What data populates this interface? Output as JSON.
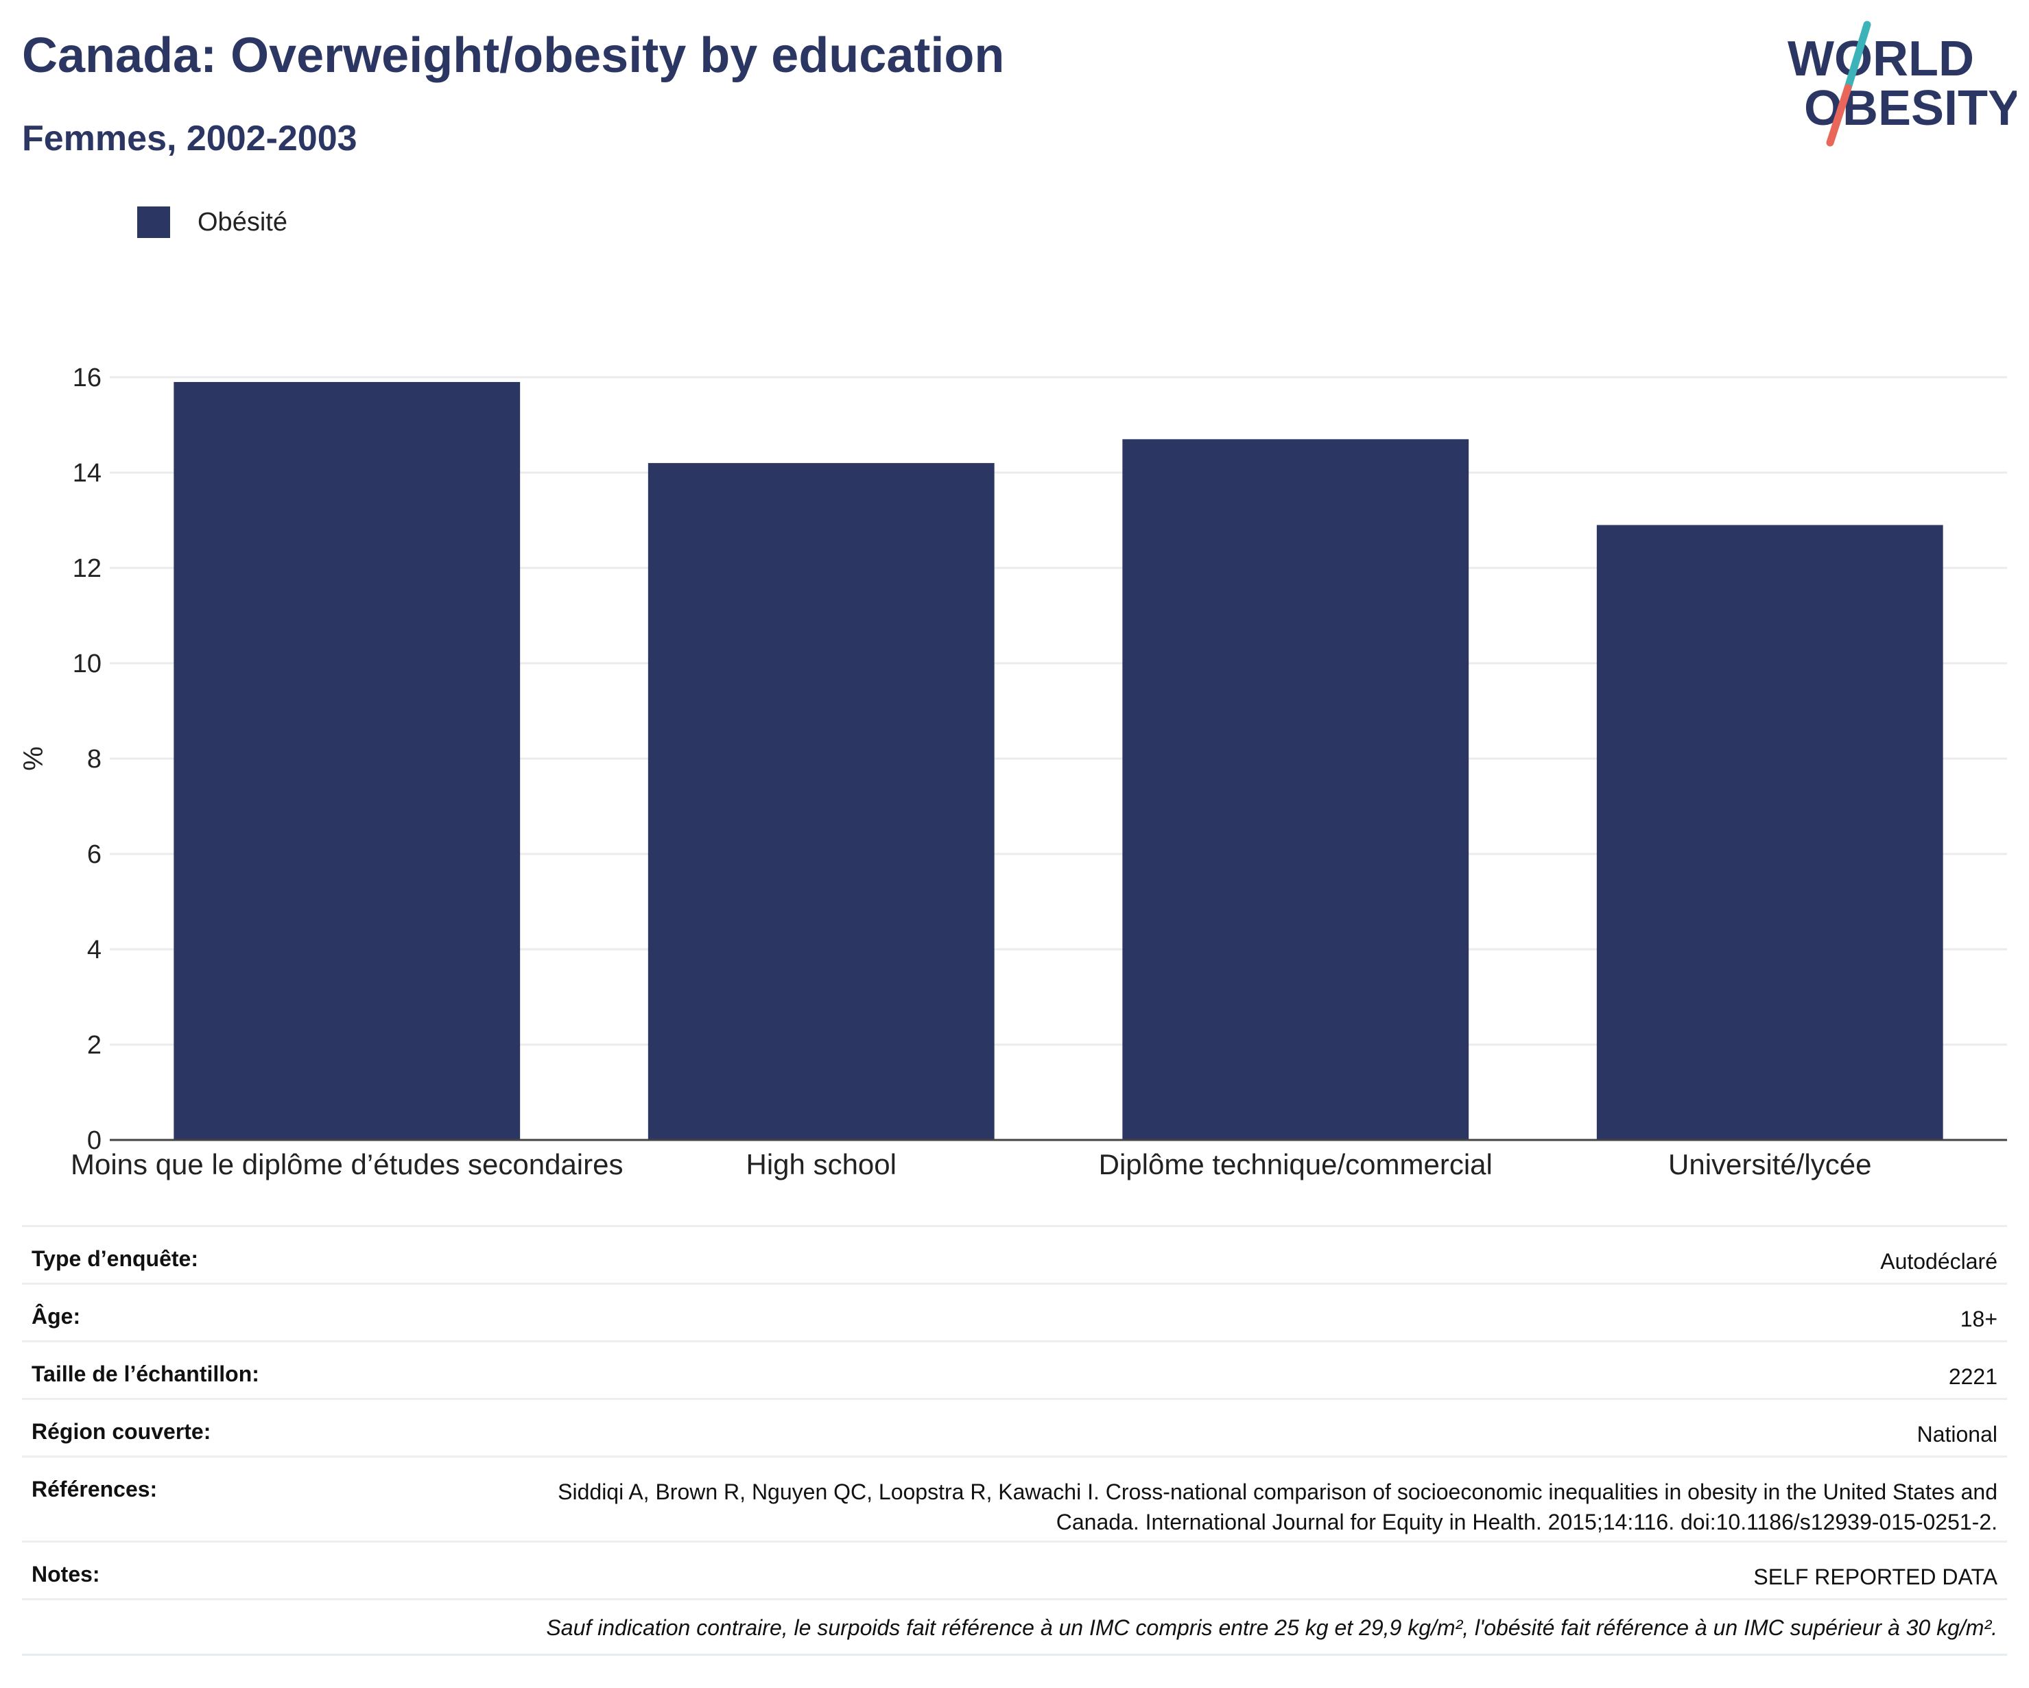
{
  "header": {
    "title": "Canada: Overweight/obesity by education",
    "subtitle": "Femmes, 2002-2003"
  },
  "logo": {
    "line1": "WORLD",
    "line2": "OBESITY",
    "colors": {
      "text": "#2b3663",
      "slash_top": "#3bb3b8",
      "slash_bottom": "#e8675a"
    }
  },
  "legend": {
    "label": "Obésité",
    "color": "#2b3663"
  },
  "chart_data": {
    "type": "bar",
    "categories": [
      "Moins que le diplôme d’études secondaires",
      "High school",
      "Diplôme technique/commercial",
      "Université/lycée"
    ],
    "series": [
      {
        "name": "Obésité",
        "values": [
          15.9,
          14.2,
          14.7,
          12.9
        ],
        "color": "#2b3663"
      }
    ],
    "ylabel": "%",
    "xlabel": "",
    "ylim": [
      0,
      16
    ],
    "yticks": [
      0,
      2,
      4,
      6,
      8,
      10,
      12,
      14,
      16
    ],
    "grid": true,
    "legend_position": "top-left"
  },
  "meta": {
    "rows": [
      {
        "label": "Type d’enquête:",
        "value": "Autodéclaré"
      },
      {
        "label": "Âge:",
        "value": "18+"
      },
      {
        "label": "Taille de l’échantillon:",
        "value": "2221"
      },
      {
        "label": "Région couverte:",
        "value": "National"
      },
      {
        "label": "Références:",
        "value": "Siddiqi A, Brown R, Nguyen QC, Loopstra R, Kawachi I. Cross-national comparison of socioeconomic inequalities in obesity in the United States and Canada. International Journal for Equity in Health. 2015;14:116. doi:10.1186/s12939-015-0251-2."
      },
      {
        "label": "Notes:",
        "value": "SELF REPORTED DATA"
      }
    ],
    "footnote": "Sauf indication contraire, le surpoids fait référence à un IMC compris entre 25 kg et 29,9 kg/m², l'obésité fait référence à un IMC supérieur à 30 kg/m²."
  }
}
